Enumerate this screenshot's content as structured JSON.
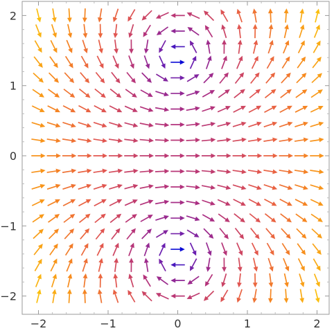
{
  "chart_data": {
    "type": "vector-field",
    "title": "",
    "xlabel": "",
    "ylabel": "",
    "xlim": [
      -2.15,
      2.15
    ],
    "ylim": [
      -2.15,
      2.15
    ],
    "x_ticks": [
      -2,
      -1,
      0,
      1,
      2
    ],
    "y_ticks": [
      -2,
      -1,
      0,
      1,
      2
    ],
    "x_tick_labels": [
      "−2",
      "−1",
      "0",
      "1",
      "2"
    ],
    "y_tick_labels": [
      "−2",
      "−1",
      "0",
      "1",
      "2"
    ],
    "grid": false,
    "frame": "box",
    "field": {
      "fx": "x^2 - y^2 + 2",
      "fy": "2*x*y",
      "sample_range": [
        -2,
        2
      ],
      "samples_per_axis": 19,
      "arrows_normalized": true
    },
    "colormap": {
      "encodes": "vector magnitude",
      "stops": [
        "#0b0bd6",
        "#6a1fb0",
        "#b0307f",
        "#e65a4b",
        "#f78a1e",
        "#fbbf0f"
      ]
    }
  }
}
